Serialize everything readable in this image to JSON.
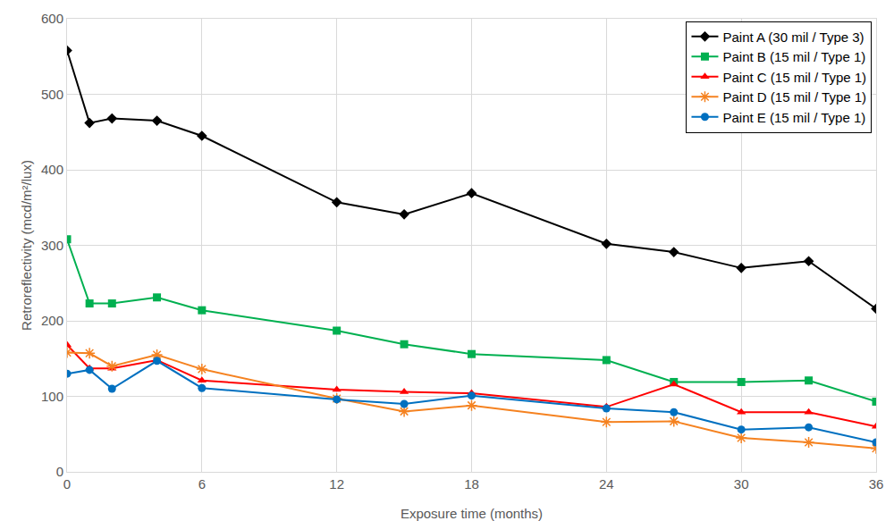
{
  "chart_data": {
    "type": "line",
    "x_label": "Exposure time (months)",
    "y_label": "Retroreflectivity (mcd/m²/lux)",
    "x": [
      0,
      1,
      2,
      4,
      6,
      12,
      15,
      18,
      24,
      27,
      30,
      33,
      36
    ],
    "xlim": [
      0,
      36
    ],
    "xticks": [
      0,
      6,
      12,
      18,
      24,
      30,
      36
    ],
    "ylim": [
      0,
      600
    ],
    "yticks": [
      0,
      100,
      200,
      300,
      400,
      500,
      600
    ],
    "grid": true,
    "legend": "upper right",
    "series": [
      {
        "name": "Paint A (30 mil / Type 3)",
        "color": "#000000",
        "marker": "diamond",
        "values": [
          558,
          462,
          468,
          465,
          445,
          357,
          341,
          369,
          302,
          291,
          270,
          279,
          216
        ]
      },
      {
        "name": "Paint B (15 mil / Type 1)",
        "color": "#00b050",
        "marker": "square",
        "values": [
          308,
          223,
          223,
          231,
          214,
          187,
          169,
          156,
          148,
          119,
          119,
          121,
          93
        ]
      },
      {
        "name": "Paint C (15 mil / Type 1)",
        "color": "#ff0000",
        "marker": "triangle",
        "values": [
          168,
          137,
          137,
          148,
          121,
          109,
          106,
          104,
          86,
          116,
          79,
          79,
          60
        ]
      },
      {
        "name": "Paint D (15 mil / Type 1)",
        "color": "#f58220",
        "marker": "asterisk",
        "values": [
          158,
          157,
          140,
          155,
          136,
          97,
          80,
          88,
          66,
          67,
          45,
          39,
          31
        ]
      },
      {
        "name": "Paint E (15 mil / Type 1)",
        "color": "#0070c0",
        "marker": "circle",
        "values": [
          130,
          135,
          110,
          147,
          111,
          96,
          90,
          101,
          84,
          79,
          56,
          59,
          39
        ]
      }
    ]
  }
}
